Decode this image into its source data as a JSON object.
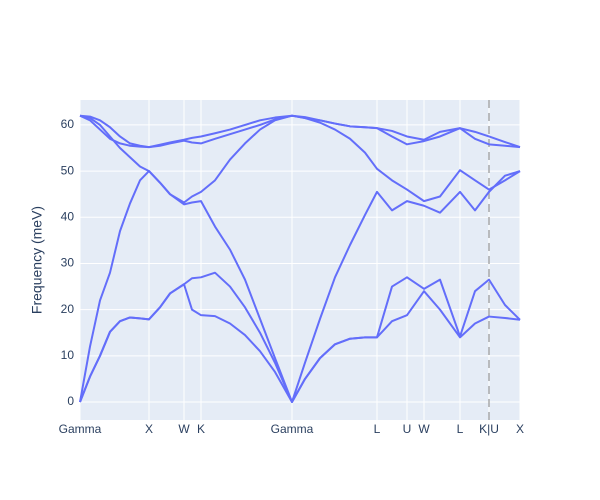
{
  "chart_data": {
    "type": "line",
    "y_label": "Frequency (meV)",
    "xlim": [
      0,
      4.4
    ],
    "ylim": [
      -3.9,
      65.4
    ],
    "xticks": [
      {
        "value": 0,
        "label": "Gamma"
      },
      {
        "value": 0.69,
        "label": "X"
      },
      {
        "value": 1.04,
        "label": "W"
      },
      {
        "value": 1.21,
        "label": "K"
      },
      {
        "value": 2.12,
        "label": "Gamma"
      },
      {
        "value": 2.97,
        "label": "L"
      },
      {
        "value": 3.27,
        "label": "U"
      },
      {
        "value": 3.44,
        "label": "W"
      },
      {
        "value": 3.8,
        "label": "L"
      },
      {
        "value": 4.09,
        "label": "K|U"
      },
      {
        "value": 4.4,
        "label": "X"
      }
    ],
    "yticks": [
      0,
      10,
      20,
      30,
      40,
      50,
      60
    ],
    "grid": true,
    "vline": 4.09,
    "vline_color": "#aaaaaa",
    "x": [
      0,
      0.1,
      0.2,
      0.3,
      0.4,
      0.5,
      0.6,
      0.69,
      0.8,
      0.9,
      1.04,
      1.12,
      1.21,
      1.35,
      1.5,
      1.65,
      1.8,
      1.95,
      2.12,
      2.25,
      2.4,
      2.55,
      2.7,
      2.85,
      2.97,
      3.12,
      3.27,
      3.44,
      3.6,
      3.8,
      3.95,
      4.09,
      4.25,
      4.4
    ],
    "series": [
      {
        "color": "#636efa",
        "values": [
          0,
          5.5,
          10,
          15.2,
          17.5,
          18.3,
          18.1,
          17.9,
          20.5,
          23.5,
          25.5,
          20,
          18.8,
          18.6,
          17,
          14.5,
          11,
          6.5,
          0,
          5,
          9.5,
          12.5,
          13.7,
          14,
          14,
          17.5,
          18.8,
          24,
          20,
          14,
          17,
          18.5,
          18.2,
          17.8
        ]
      },
      {
        "color": "#636efa",
        "values": [
          0,
          5.5,
          10,
          15.2,
          17.5,
          18.3,
          18.1,
          17.9,
          20.5,
          23.5,
          25.5,
          26.8,
          27,
          28,
          25,
          20.5,
          15,
          8.5,
          0,
          5,
          9.5,
          12.5,
          13.7,
          14,
          14,
          25,
          27,
          24.5,
          26.5,
          14.2,
          24,
          26.5,
          21,
          17.8
        ]
      },
      {
        "color": "#636efa",
        "values": [
          0,
          12,
          22,
          28,
          37,
          43,
          48,
          50,
          47.5,
          45,
          42.8,
          43.2,
          43.5,
          38,
          33,
          26.5,
          18,
          9.5,
          0,
          8.5,
          18,
          27,
          34,
          40.5,
          45.5,
          41.5,
          43.5,
          42.5,
          41,
          45.5,
          41.5,
          45.5,
          49,
          50
        ]
      },
      {
        "color": "#636efa",
        "values": [
          62,
          61.5,
          60,
          57.5,
          55,
          53,
          51,
          50,
          47.5,
          45,
          43.2,
          44.5,
          45.5,
          48,
          52.5,
          56,
          59,
          61,
          62,
          61.5,
          60.5,
          59,
          57,
          54,
          50.5,
          48,
          46,
          43.5,
          44.5,
          50.2,
          48,
          46,
          48,
          50
        ]
      },
      {
        "color": "#636efa",
        "values": [
          62,
          61,
          59,
          57,
          56,
          55.5,
          55.3,
          55.2,
          55.5,
          56,
          56.6,
          56.2,
          56,
          57,
          58,
          59,
          60,
          61.2,
          62,
          61.5,
          61,
          60.3,
          59.7,
          59.5,
          59.3,
          57.5,
          55.8,
          56.5,
          57.5,
          59.3,
          57,
          55.8,
          55.5,
          55.2
        ]
      },
      {
        "color": "#636efa",
        "values": [
          62,
          61.8,
          61,
          59.5,
          57.5,
          56,
          55.5,
          55.2,
          55.7,
          56.2,
          56.8,
          57.2,
          57.5,
          58.2,
          59,
          60,
          61,
          61.6,
          62,
          61.7,
          61,
          60.3,
          59.7,
          59.5,
          59.3,
          58.7,
          57.5,
          56.8,
          58.5,
          59.3,
          58.5,
          57.5,
          56.3,
          55.2
        ]
      }
    ]
  }
}
